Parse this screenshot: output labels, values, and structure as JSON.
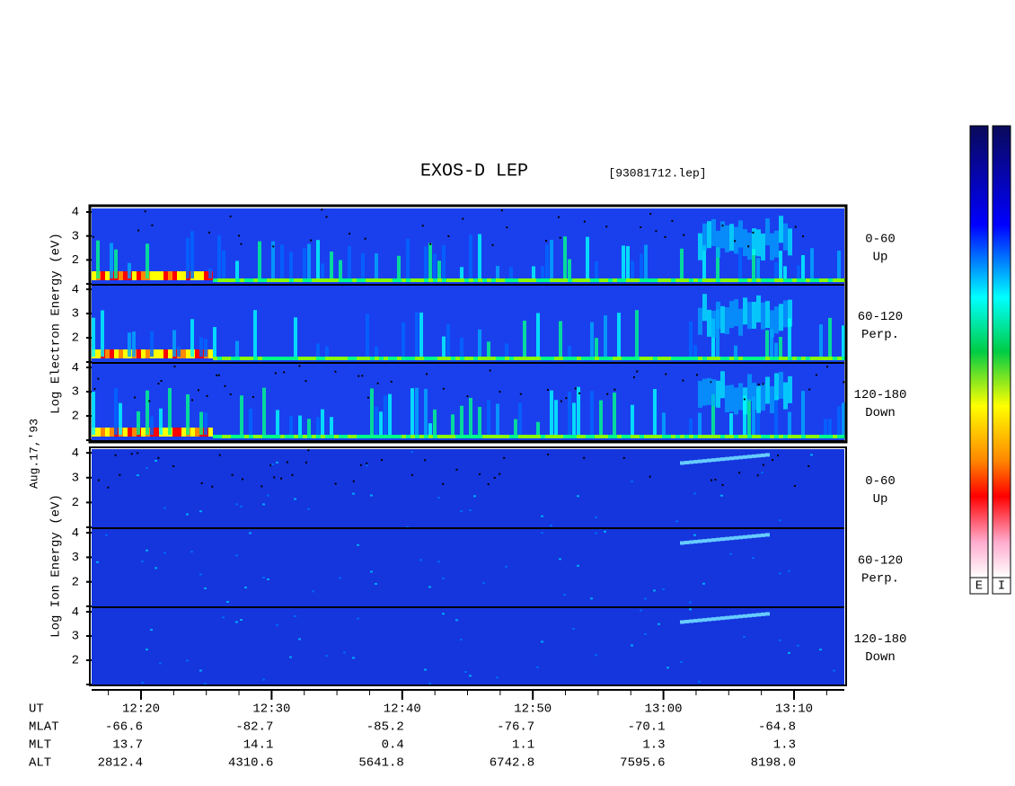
{
  "title": "EXOS-D LEP",
  "file": "[93081712.lep]",
  "date": "Aug.17,'93",
  "electron": {
    "axis_label": "Log Electron Energy (eV)"
  },
  "ion": {
    "axis_label": "Log Ion Energy (eV)"
  },
  "energy_axis": {
    "ylim": [
      1,
      4.15
    ],
    "yticks": [
      2,
      3,
      4
    ]
  },
  "pitch_angles": [
    {
      "range": "0-60",
      "direction": "Up"
    },
    {
      "range": "60-120",
      "direction": "Perp."
    },
    {
      "range": "120-180",
      "direction": "Down"
    }
  ],
  "ephemeris": {
    "labels": [
      "UT",
      "MLAT",
      "MLT",
      "ALT"
    ],
    "ut": [
      "12:20",
      "12:30",
      "12:40",
      "12:50",
      "13:00",
      "13:10"
    ],
    "mlat": [
      "-66.6",
      "-82.7",
      "-85.2",
      "-76.7",
      "-70.1",
      "-64.8"
    ],
    "mlt": [
      "13.7",
      "14.1",
      "0.4",
      "1.1",
      "1.3",
      "1.3"
    ],
    "alt": [
      "2812.4",
      "4310.6",
      "5641.8",
      "6742.8",
      "7595.6",
      "8198.0"
    ]
  },
  "colorbars": [
    "E",
    "I"
  ]
}
